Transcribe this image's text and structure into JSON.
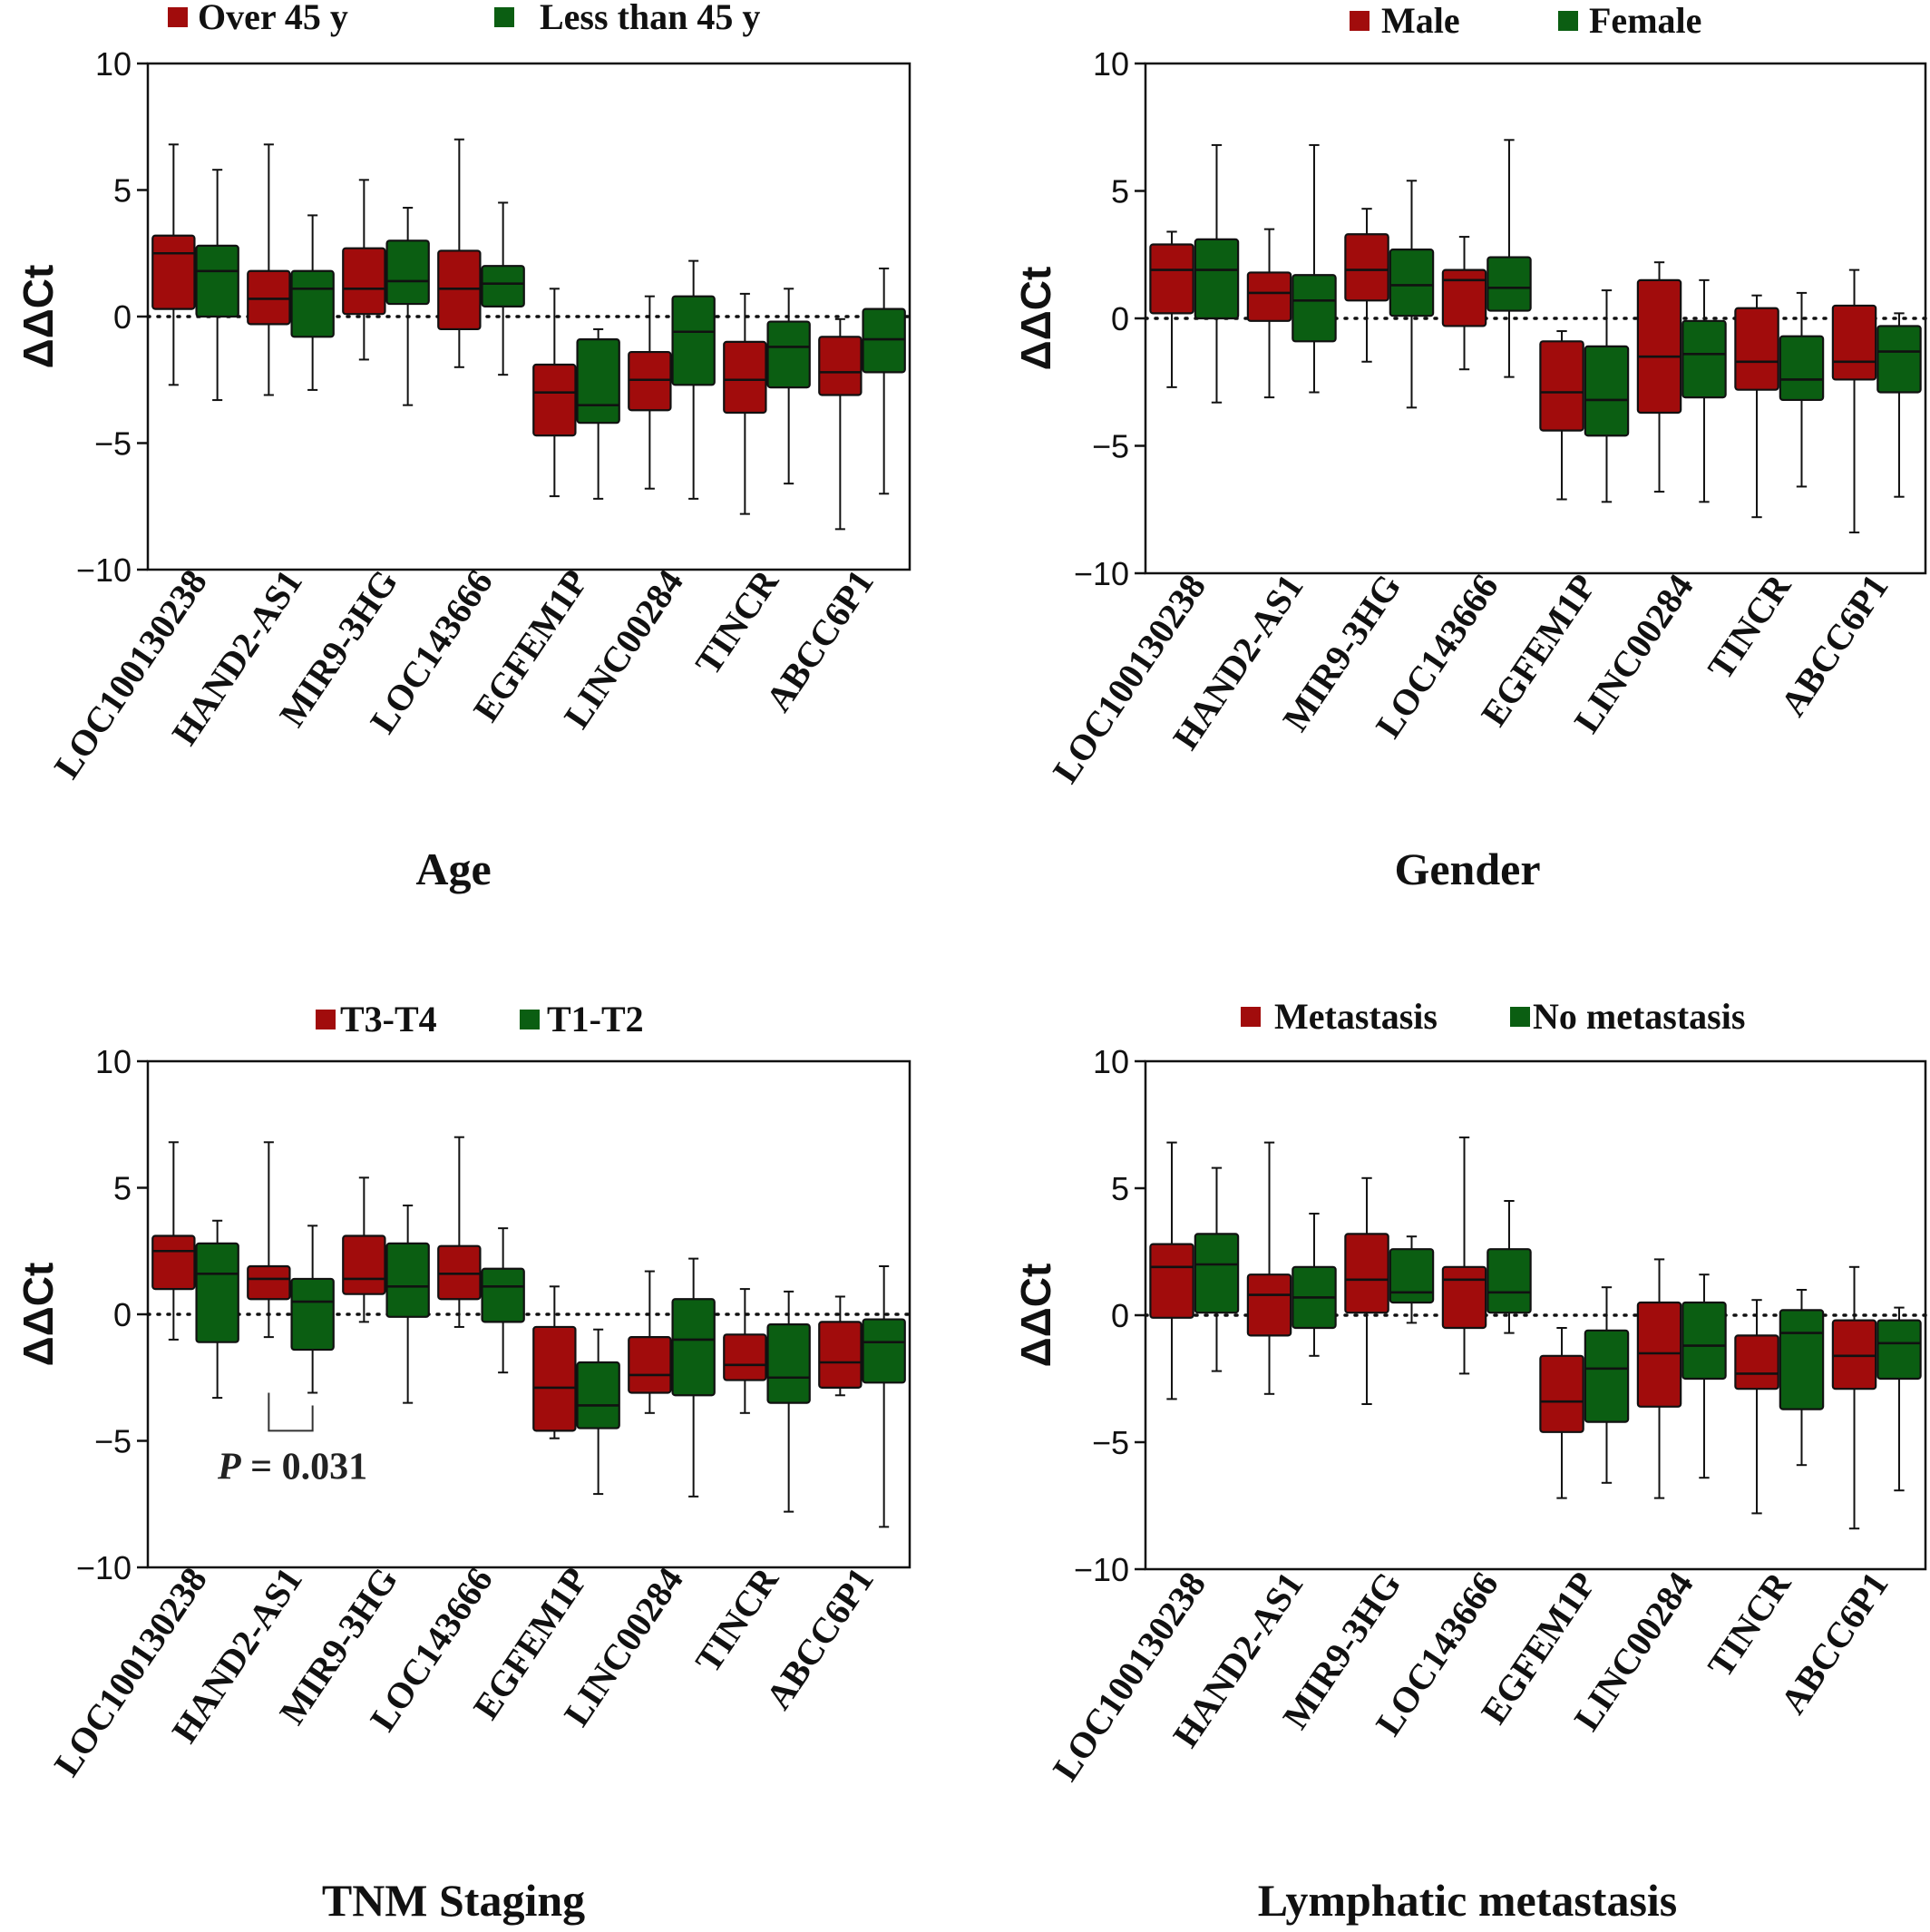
{
  "colors": {
    "group1": "#a10c0c",
    "group2": "#0b5e12",
    "axis": "#111111"
  },
  "chart_data": [
    {
      "type": "box",
      "xlabel": "Age",
      "ylabel": "ΔΔCt",
      "ylim": [
        -10,
        10
      ],
      "yticks": [
        10,
        5,
        0,
        -5,
        -10
      ],
      "ytick_labels": [
        "10",
        "5",
        "0",
        "−5",
        "−10"
      ],
      "reference_line": 0,
      "legend_position": "top",
      "categories": [
        "LOC100130238",
        "HAND2-AS1",
        "MIR9-3HG",
        "LOC143666",
        "EGFEM1P",
        "LINC00284",
        "TINCR",
        "ABCC6P1"
      ],
      "series": [
        {
          "name": "Over 45 y",
          "boxes": [
            {
              "min": -2.7,
              "q1": 0.3,
              "median": 2.5,
              "q3": 3.2,
              "max": 6.8
            },
            {
              "min": -3.1,
              "q1": -0.3,
              "median": 0.7,
              "q3": 1.8,
              "max": 6.8
            },
            {
              "min": -1.7,
              "q1": 0.1,
              "median": 1.1,
              "q3": 2.7,
              "max": 5.4
            },
            {
              "min": -2.0,
              "q1": -0.5,
              "median": 1.1,
              "q3": 2.6,
              "max": 7.0
            },
            {
              "min": -7.1,
              "q1": -4.7,
              "median": -3.0,
              "q3": -1.9,
              "max": 1.1
            },
            {
              "min": -6.8,
              "q1": -3.7,
              "median": -2.5,
              "q3": -1.4,
              "max": 0.8
            },
            {
              "min": -7.8,
              "q1": -3.8,
              "median": -2.5,
              "q3": -1.0,
              "max": 0.9
            },
            {
              "min": -8.4,
              "q1": -3.1,
              "median": -2.2,
              "q3": -0.8,
              "max": -0.1
            }
          ]
        },
        {
          "name": "Less than 45 y",
          "boxes": [
            {
              "min": -3.3,
              "q1": 0.0,
              "median": 1.8,
              "q3": 2.8,
              "max": 5.8
            },
            {
              "min": -2.9,
              "q1": -0.8,
              "median": 1.1,
              "q3": 1.8,
              "max": 4.0
            },
            {
              "min": -3.5,
              "q1": 0.5,
              "median": 1.4,
              "q3": 3.0,
              "max": 4.3
            },
            {
              "min": -2.3,
              "q1": 0.4,
              "median": 1.3,
              "q3": 2.0,
              "max": 4.5
            },
            {
              "min": -7.2,
              "q1": -4.2,
              "median": -3.5,
              "q3": -0.9,
              "max": -0.5
            },
            {
              "min": -7.2,
              "q1": -2.7,
              "median": -0.6,
              "q3": 0.8,
              "max": 2.2
            },
            {
              "min": -6.6,
              "q1": -2.8,
              "median": -1.2,
              "q3": -0.2,
              "max": 1.1
            },
            {
              "min": -7.0,
              "q1": -2.2,
              "median": -0.9,
              "q3": 0.3,
              "max": 1.9
            }
          ]
        }
      ]
    },
    {
      "type": "box",
      "xlabel": "Gender",
      "ylabel": "ΔΔCt",
      "ylim": [
        -10,
        10
      ],
      "yticks": [
        10,
        5,
        0,
        -5,
        -10
      ],
      "ytick_labels": [
        "10",
        "5",
        "0",
        "−5",
        "−10"
      ],
      "reference_line": 0,
      "legend_position": "top",
      "categories": [
        "LOC100130238",
        "HAND2-AS1",
        "MIR9-3HG",
        "LOC143666",
        "EGFEM1P",
        "LINC00284",
        "TINCR",
        "ABCC6P1"
      ],
      "series": [
        {
          "name": "Male",
          "boxes": [
            {
              "min": -2.7,
              "q1": 0.2,
              "median": 1.9,
              "q3": 2.9,
              "max": 3.4
            },
            {
              "min": -3.1,
              "q1": -0.1,
              "median": 1.0,
              "q3": 1.8,
              "max": 3.5
            },
            {
              "min": -1.7,
              "q1": 0.7,
              "median": 1.9,
              "q3": 3.3,
              "max": 4.3
            },
            {
              "min": -2.0,
              "q1": -0.3,
              "median": 1.5,
              "q3": 1.9,
              "max": 3.2
            },
            {
              "min": -7.1,
              "q1": -4.4,
              "median": -2.9,
              "q3": -0.9,
              "max": -0.5
            },
            {
              "min": -6.8,
              "q1": -3.7,
              "median": -1.5,
              "q3": 1.5,
              "max": 2.2
            },
            {
              "min": -7.8,
              "q1": -2.8,
              "median": -1.7,
              "q3": 0.4,
              "max": 0.9
            },
            {
              "min": -8.4,
              "q1": -2.4,
              "median": -1.7,
              "q3": 0.5,
              "max": 1.9
            }
          ]
        },
        {
          "name": "Female",
          "boxes": [
            {
              "min": -3.3,
              "q1": 0.0,
              "median": 1.9,
              "q3": 3.1,
              "max": 6.8
            },
            {
              "min": -2.9,
              "q1": -0.9,
              "median": 0.7,
              "q3": 1.7,
              "max": 6.8
            },
            {
              "min": -3.5,
              "q1": 0.1,
              "median": 1.3,
              "q3": 2.7,
              "max": 5.4
            },
            {
              "min": -2.3,
              "q1": 0.3,
              "median": 1.2,
              "q3": 2.4,
              "max": 7.0
            },
            {
              "min": -7.2,
              "q1": -4.6,
              "median": -3.2,
              "q3": -1.1,
              "max": 1.1
            },
            {
              "min": -7.2,
              "q1": -3.1,
              "median": -1.4,
              "q3": -0.1,
              "max": 1.5
            },
            {
              "min": -6.6,
              "q1": -3.2,
              "median": -2.4,
              "q3": -0.7,
              "max": 1.0
            },
            {
              "min": -7.0,
              "q1": -2.9,
              "median": -1.3,
              "q3": -0.3,
              "max": 0.2
            }
          ]
        }
      ]
    },
    {
      "type": "box",
      "xlabel": "TNM Staging",
      "ylabel": "ΔΔCt",
      "ylim": [
        -10,
        10
      ],
      "yticks": [
        10,
        5,
        0,
        -5,
        -10
      ],
      "ytick_labels": [
        "10",
        "5",
        "0",
        "−5",
        "−10"
      ],
      "reference_line": 0,
      "legend_position": "top",
      "annotation": {
        "category": "HAND2-AS1",
        "p_label": "P",
        "p_text": " =  0.031"
      },
      "categories": [
        "LOC100130238",
        "HAND2-AS1",
        "MIR9-3HG",
        "LOC143666",
        "EGFEM1P",
        "LINC00284",
        "TINCR",
        "ABCC6P1"
      ],
      "series": [
        {
          "name": "T3-T4",
          "boxes": [
            {
              "min": -1.0,
              "q1": 1.0,
              "median": 2.5,
              "q3": 3.1,
              "max": 6.8
            },
            {
              "min": -0.9,
              "q1": 0.6,
              "median": 1.4,
              "q3": 1.9,
              "max": 6.8
            },
            {
              "min": -0.3,
              "q1": 0.8,
              "median": 1.4,
              "q3": 3.1,
              "max": 5.4
            },
            {
              "min": -0.5,
              "q1": 0.6,
              "median": 1.6,
              "q3": 2.7,
              "max": 7.0
            },
            {
              "min": -4.9,
              "q1": -4.6,
              "median": -2.9,
              "q3": -0.5,
              "max": 1.1
            },
            {
              "min": -3.9,
              "q1": -3.1,
              "median": -2.4,
              "q3": -0.9,
              "max": 1.7
            },
            {
              "min": -3.9,
              "q1": -2.6,
              "median": -2.0,
              "q3": -0.8,
              "max": 1.0
            },
            {
              "min": -3.2,
              "q1": -2.9,
              "median": -1.9,
              "q3": -0.3,
              "max": 0.7
            }
          ]
        },
        {
          "name": "T1-T2",
          "boxes": [
            {
              "min": -3.3,
              "q1": -1.1,
              "median": 1.6,
              "q3": 2.8,
              "max": 3.7
            },
            {
              "min": -3.1,
              "q1": -1.4,
              "median": 0.5,
              "q3": 1.4,
              "max": 3.5
            },
            {
              "min": -3.5,
              "q1": -0.1,
              "median": 1.1,
              "q3": 2.8,
              "max": 4.3
            },
            {
              "min": -2.3,
              "q1": -0.3,
              "median": 1.1,
              "q3": 1.8,
              "max": 3.4
            },
            {
              "min": -7.1,
              "q1": -4.5,
              "median": -3.6,
              "q3": -1.9,
              "max": -0.6
            },
            {
              "min": -7.2,
              "q1": -3.2,
              "median": -1.0,
              "q3": 0.6,
              "max": 2.2
            },
            {
              "min": -7.8,
              "q1": -3.5,
              "median": -2.5,
              "q3": -0.4,
              "max": 0.9
            },
            {
              "min": -8.4,
              "q1": -2.7,
              "median": -1.1,
              "q3": -0.2,
              "max": 1.9
            }
          ]
        }
      ]
    },
    {
      "type": "box",
      "xlabel": "Lymphatic metastasis",
      "ylabel": "ΔΔCt",
      "ylim": [
        -10,
        10
      ],
      "yticks": [
        10,
        5,
        0,
        -5,
        -10
      ],
      "ytick_labels": [
        "10",
        "5",
        "0",
        "−5",
        "−10"
      ],
      "reference_line": 0,
      "legend_position": "top",
      "categories": [
        "LOC100130238",
        "HAND2-AS1",
        "MIR9-3HG",
        "LOC143666",
        "EGFEM1P",
        "LINC00284",
        "TINCR",
        "ABCC6P1"
      ],
      "series": [
        {
          "name": "Metastasis",
          "boxes": [
            {
              "min": -3.3,
              "q1": -0.1,
              "median": 1.9,
              "q3": 2.8,
              "max": 6.8
            },
            {
              "min": -3.1,
              "q1": -0.8,
              "median": 0.8,
              "q3": 1.6,
              "max": 6.8
            },
            {
              "min": -3.5,
              "q1": 0.1,
              "median": 1.4,
              "q3": 3.2,
              "max": 5.4
            },
            {
              "min": -2.3,
              "q1": -0.5,
              "median": 1.4,
              "q3": 1.9,
              "max": 7.0
            },
            {
              "min": -7.2,
              "q1": -4.6,
              "median": -3.4,
              "q3": -1.6,
              "max": -0.5
            },
            {
              "min": -7.2,
              "q1": -3.6,
              "median": -1.5,
              "q3": 0.5,
              "max": 2.2
            },
            {
              "min": -7.8,
              "q1": -2.9,
              "median": -2.3,
              "q3": -0.8,
              "max": 0.6
            },
            {
              "min": -8.4,
              "q1": -2.9,
              "median": -1.6,
              "q3": -0.2,
              "max": 1.9
            }
          ]
        },
        {
          "name": "No metastasis",
          "boxes": [
            {
              "min": -2.2,
              "q1": 0.1,
              "median": 2.0,
              "q3": 3.2,
              "max": 5.8
            },
            {
              "min": -1.6,
              "q1": -0.5,
              "median": 0.7,
              "q3": 1.9,
              "max": 4.0
            },
            {
              "min": -0.3,
              "q1": 0.5,
              "median": 0.9,
              "q3": 2.6,
              "max": 3.1
            },
            {
              "min": -0.7,
              "q1": 0.1,
              "median": 0.9,
              "q3": 2.6,
              "max": 4.5
            },
            {
              "min": -6.6,
              "q1": -4.2,
              "median": -2.1,
              "q3": -0.6,
              "max": 1.1
            },
            {
              "min": -6.4,
              "q1": -2.5,
              "median": -1.2,
              "q3": 0.5,
              "max": 1.6
            },
            {
              "min": -5.9,
              "q1": -3.7,
              "median": -0.7,
              "q3": 0.2,
              "max": 1.0
            },
            {
              "min": -6.9,
              "q1": -2.5,
              "median": -1.1,
              "q3": -0.2,
              "max": 0.3
            }
          ]
        }
      ]
    }
  ]
}
